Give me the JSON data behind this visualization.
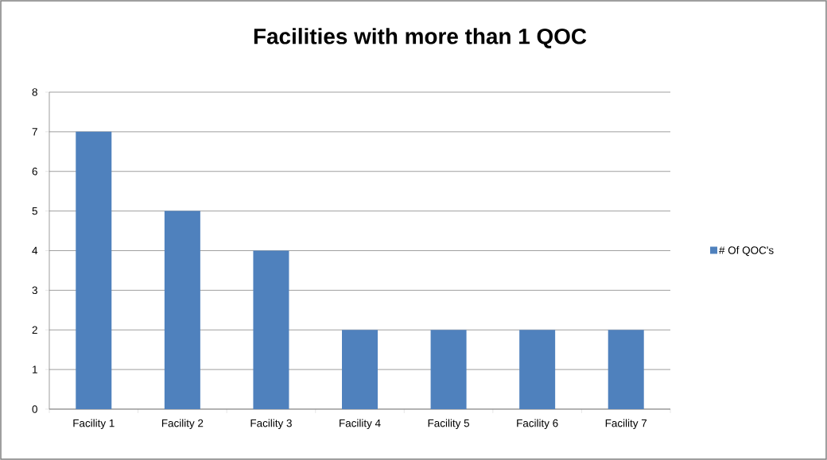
{
  "chart_data": {
    "type": "bar",
    "title": "Facilities with more than 1 QOC",
    "categories": [
      "Facility 1",
      "Facility 2",
      "Facility 3",
      "Facility 4",
      "Facility 5",
      "Facility 6",
      "Facility 7"
    ],
    "series": [
      {
        "name": "# Of QOC's",
        "color": "#4f81bd",
        "values": [
          7,
          5,
          4,
          2,
          2,
          2,
          2
        ]
      }
    ],
    "ylim": [
      0,
      8
    ],
    "yticks": [
      0,
      1,
      2,
      3,
      4,
      5,
      6,
      7,
      8
    ],
    "grid": "y",
    "legend": "right"
  }
}
